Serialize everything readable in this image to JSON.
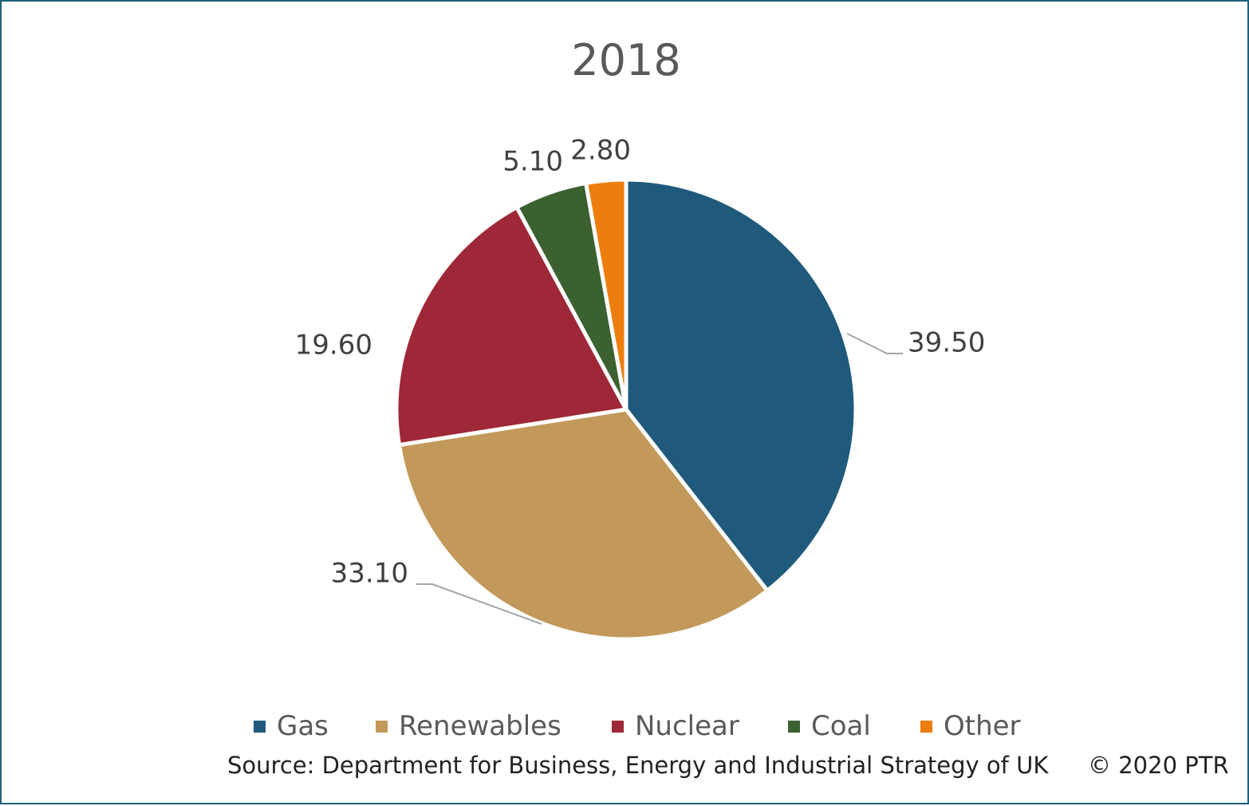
{
  "chart_data": {
    "type": "pie",
    "title": "2018",
    "categories": [
      "Gas",
      "Renewables",
      "Nuclear",
      "Coal",
      "Other"
    ],
    "values": [
      39.5,
      33.1,
      19.6,
      5.1,
      2.8
    ],
    "value_labels": [
      "39.50",
      "33.10",
      "19.60",
      "5.10",
      "2.80"
    ],
    "colors": [
      "#1f5a7c",
      "#c2995b",
      "#9e2837",
      "#3c6131",
      "#ee7d0f"
    ],
    "legend_position": "bottom"
  },
  "footer": {
    "source": "Source: Department for Business, Energy and Industrial Strategy of UK",
    "copyright": "© 2020 PTR"
  }
}
